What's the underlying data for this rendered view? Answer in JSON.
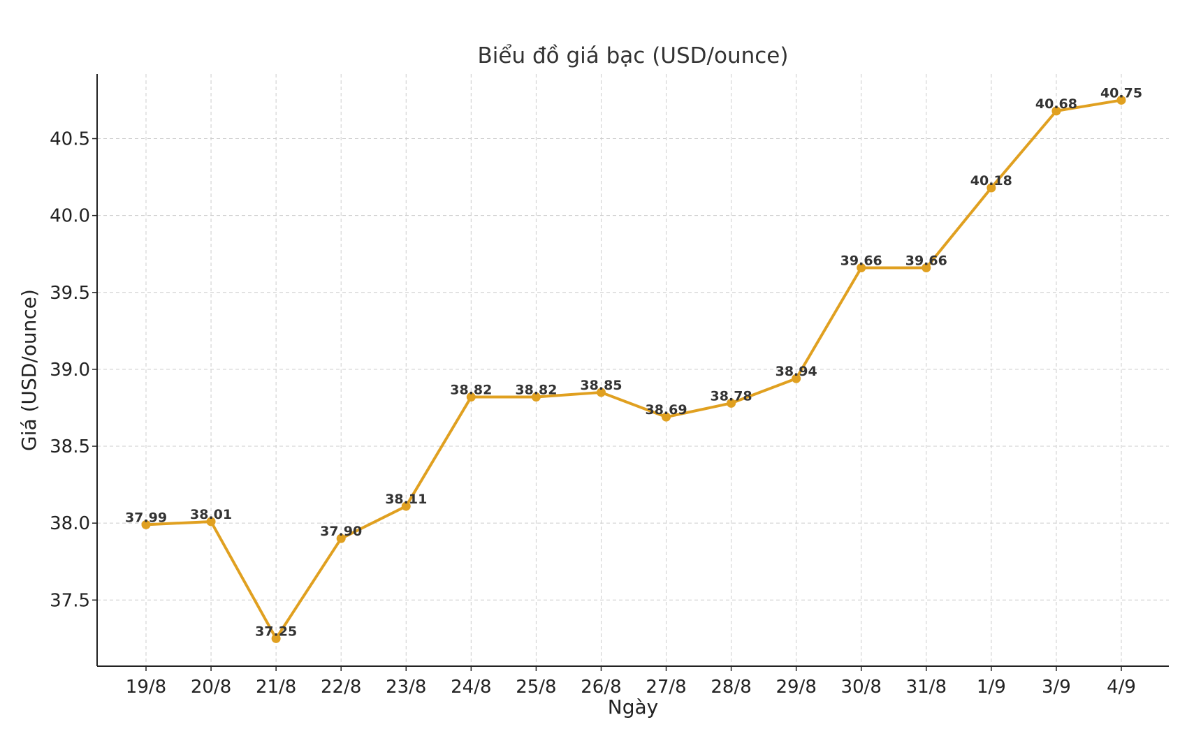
{
  "chart_data": {
    "type": "line",
    "title": "Biểu đồ giá bạc (USD/ounce)",
    "xlabel": "Ngày",
    "ylabel": "Giá (USD/ounce)",
    "categories": [
      "19/8",
      "20/8",
      "21/8",
      "22/8",
      "23/8",
      "24/8",
      "25/8",
      "26/8",
      "27/8",
      "28/8",
      "29/8",
      "30/8",
      "31/8",
      "1/9",
      "3/9",
      "4/9"
    ],
    "series": [
      {
        "values": [
          37.99,
          38.01,
          37.25,
          37.9,
          38.11,
          38.82,
          38.82,
          38.85,
          38.69,
          38.78,
          38.94,
          39.66,
          39.66,
          40.18,
          40.68,
          40.75
        ]
      }
    ],
    "data_labels": [
      "37.99",
      "38.01",
      "37.25",
      "37.90",
      "38.11",
      "38.82",
      "38.82",
      "38.85",
      "38.69",
      "38.78",
      "38.94",
      "39.66",
      "39.66",
      "40.18",
      "40.68",
      "40.75"
    ],
    "yticks": [
      37.5,
      38.0,
      38.5,
      39.0,
      39.5,
      40.0,
      40.5
    ],
    "ytick_labels": [
      "37.5",
      "38.0",
      "38.5",
      "39.0",
      "39.5",
      "40.0",
      "40.5"
    ],
    "ylim": [
      37.07,
      40.92
    ],
    "grid": true,
    "line_color": "#E0A020",
    "marker": "circle"
  }
}
